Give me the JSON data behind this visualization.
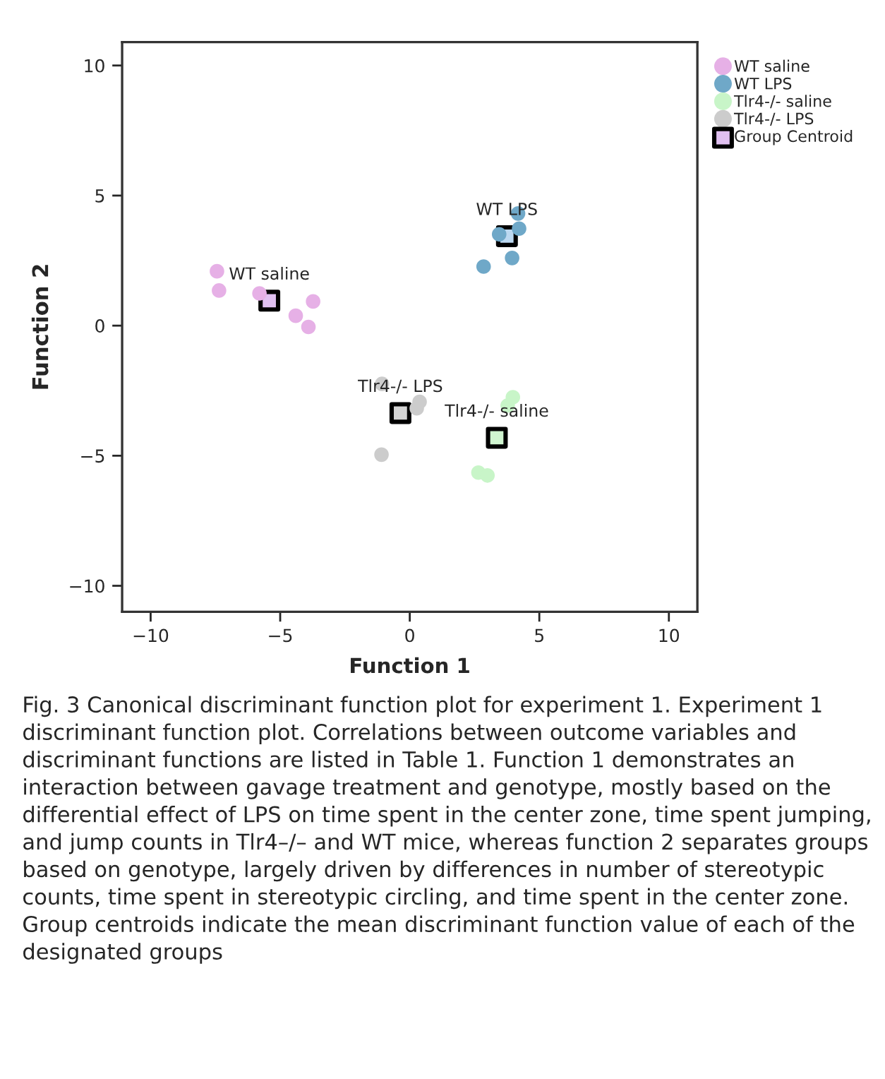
{
  "chart_data": {
    "type": "scatter",
    "xlabel": "Function 1",
    "ylabel": "Function 2",
    "xlim": [
      -11.1,
      11.1
    ],
    "ylim": [
      -11,
      10.9
    ],
    "xticks": [
      {
        "value": -10,
        "label": "−10"
      },
      {
        "value": -5,
        "label": "−5"
      },
      0,
      5,
      10
    ],
    "yticks": [
      {
        "value": -10,
        "label": "−10"
      },
      {
        "value": -5,
        "label": "−5"
      },
      0,
      5,
      10
    ],
    "grid": false,
    "legend": "right",
    "marker": "circle",
    "series": [
      {
        "name": "WT saline",
        "color": "#e6b0e6",
        "x": [
          -7.44,
          -7.36,
          -5.8,
          -3.73,
          -4.4,
          -3.91
        ],
        "values": [
          2.09,
          1.35,
          1.24,
          0.93,
          0.38,
          -0.05
        ]
      },
      {
        "name": "WT LPS",
        "color": "#6fa8c8",
        "x": [
          4.18,
          4.22,
          3.45,
          3.95,
          2.85
        ],
        "values": [
          4.31,
          3.73,
          3.51,
          2.6,
          2.27
        ]
      },
      {
        "name": "Tlr4-/- saline",
        "color": "#c8f5c8",
        "x": [
          3.98,
          3.78,
          2.65,
          3.0
        ],
        "values": [
          -2.75,
          -3.07,
          -5.65,
          -5.76
        ]
      },
      {
        "name": "Tlr4-/- LPS",
        "color": "#cccccc",
        "x": [
          -1.07,
          0.38,
          0.27,
          -1.09
        ],
        "values": [
          -2.24,
          -2.93,
          -3.18,
          -4.96
        ]
      },
      {
        "name": "Group Centroid",
        "marker": "square",
        "color": "#000000",
        "colors": [
          "#e0c0f0",
          "#bcd8f0",
          "#d0f5d0",
          "#d4d4d4"
        ],
        "x": [
          -5.42,
          3.75,
          3.36,
          -0.36
        ],
        "values": [
          0.96,
          3.44,
          -4.31,
          -3.36
        ]
      }
    ],
    "annotations": [
      {
        "text": "WT saline",
        "x": -5.42,
        "y": 0.96
      },
      {
        "text": "WT LPS",
        "x": 3.75,
        "y": 3.44
      },
      {
        "text": "Tlr4-/- saline",
        "x": 3.36,
        "y": -4.31
      },
      {
        "text": "Tlr4-/- LPS",
        "x": -0.36,
        "y": -3.36
      },
      "Fig. 3 Canonical discriminant function plot for experiment 1. Experiment 1 discriminant function plot. Correlations between outcome variables and discriminant functions are listed in Table 1. Function 1 demonstrates an interaction between gavage treatment and genotype, mostly based on the differential effect of LPS on time spent in the center zone, time spent jumping, and jump counts in Tlr4–/– and WT mice, whereas function 2 separates groups based on genotype, largely driven by differences in number of stereotypic counts, time spent in stereotypic circling, and time spent in the center zone. Group centroids indicate the mean discriminant function value of each of the designated groups"
    ]
  }
}
